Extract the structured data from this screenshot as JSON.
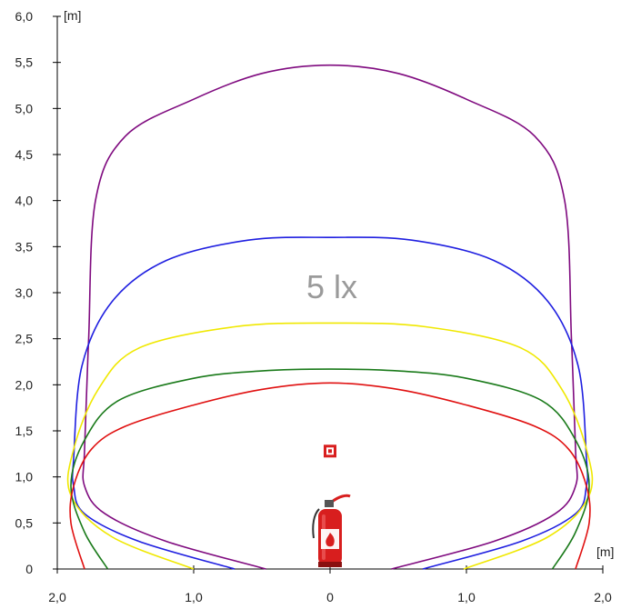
{
  "chart_data": {
    "type": "line",
    "title": "",
    "annotation": "5 lx",
    "x_unit": "[m]",
    "y_unit": "[m]",
    "xlim": [
      -2,
      2
    ],
    "ylim": [
      0,
      6
    ],
    "x_ticks": [
      {
        "value": -2,
        "label": "2,0"
      },
      {
        "value": -1,
        "label": "1,0"
      },
      {
        "value": 0,
        "label": "0"
      },
      {
        "value": 1,
        "label": "1,0"
      },
      {
        "value": 2,
        "label": "2,0"
      }
    ],
    "y_ticks": [
      {
        "value": 0,
        "label": "0"
      },
      {
        "value": 0.5,
        "label": "0,5"
      },
      {
        "value": 1,
        "label": "1,0"
      },
      {
        "value": 1.5,
        "label": "1,5"
      },
      {
        "value": 2,
        "label": "2,0"
      },
      {
        "value": 2.5,
        "label": "2,5"
      },
      {
        "value": 3,
        "label": "3,0"
      },
      {
        "value": 3.5,
        "label": "3,5"
      },
      {
        "value": 4,
        "label": "4,0"
      },
      {
        "value": 4.5,
        "label": "4,5"
      },
      {
        "value": 5,
        "label": "5,0"
      },
      {
        "value": 5.5,
        "label": "5,5"
      },
      {
        "value": 6,
        "label": "6,0"
      }
    ],
    "grid": false,
    "series": [
      {
        "color": "#7f0a7f",
        "points": [
          [
            -0.47,
            0
          ],
          [
            -1.2,
            0.3
          ],
          [
            -1.65,
            0.6
          ],
          [
            -1.8,
            0.9
          ],
          [
            -1.8,
            1.3
          ],
          [
            -1.77,
            2.5
          ],
          [
            -1.72,
            4.0
          ],
          [
            -1.5,
            4.7
          ],
          [
            -1.0,
            5.1
          ],
          [
            -0.5,
            5.38
          ],
          [
            0,
            5.47
          ],
          [
            0.5,
            5.38
          ],
          [
            1.0,
            5.1
          ],
          [
            1.5,
            4.7
          ],
          [
            1.72,
            4.0
          ],
          [
            1.77,
            2.5
          ],
          [
            1.8,
            1.3
          ],
          [
            1.8,
            0.9
          ],
          [
            1.65,
            0.6
          ],
          [
            1.2,
            0.3
          ],
          [
            0.45,
            0
          ]
        ]
      },
      {
        "color": "#1f1fe0",
        "points": [
          [
            -0.7,
            0
          ],
          [
            -1.4,
            0.3
          ],
          [
            -1.8,
            0.6
          ],
          [
            -1.88,
            0.9
          ],
          [
            -1.88,
            1.2
          ],
          [
            -1.82,
            2.2
          ],
          [
            -1.6,
            2.9
          ],
          [
            -1.2,
            3.35
          ],
          [
            -0.6,
            3.57
          ],
          [
            0,
            3.6
          ],
          [
            0.6,
            3.57
          ],
          [
            1.2,
            3.35
          ],
          [
            1.6,
            2.9
          ],
          [
            1.82,
            2.2
          ],
          [
            1.88,
            1.2
          ],
          [
            1.88,
            0.9
          ],
          [
            1.8,
            0.6
          ],
          [
            1.4,
            0.3
          ],
          [
            0.68,
            0
          ]
        ]
      },
      {
        "color": "#f0e800",
        "points": [
          [
            -1.0,
            0
          ],
          [
            -1.6,
            0.35
          ],
          [
            -1.9,
            0.8
          ],
          [
            -1.88,
            1.3
          ],
          [
            -1.7,
            1.95
          ],
          [
            -1.4,
            2.4
          ],
          [
            -0.7,
            2.63
          ],
          [
            0,
            2.67
          ],
          [
            0.7,
            2.63
          ],
          [
            1.4,
            2.4
          ],
          [
            1.7,
            1.95
          ],
          [
            1.88,
            1.3
          ],
          [
            1.9,
            0.8
          ],
          [
            1.6,
            0.35
          ],
          [
            0.98,
            0
          ]
        ]
      },
      {
        "color": "#1a7a1a",
        "points": [
          [
            -1.63,
            0
          ],
          [
            -1.8,
            0.4
          ],
          [
            -1.9,
            0.9
          ],
          [
            -1.8,
            1.4
          ],
          [
            -1.55,
            1.83
          ],
          [
            -1.0,
            2.07
          ],
          [
            -0.5,
            2.15
          ],
          [
            0,
            2.17
          ],
          [
            0.5,
            2.15
          ],
          [
            1.0,
            2.07
          ],
          [
            1.55,
            1.83
          ],
          [
            1.8,
            1.4
          ],
          [
            1.9,
            0.9
          ],
          [
            1.8,
            0.4
          ],
          [
            1.63,
            0
          ]
        ]
      },
      {
        "color": "#e01010",
        "points": [
          [
            -1.8,
            0
          ],
          [
            -1.9,
            0.5
          ],
          [
            -1.88,
            0.9
          ],
          [
            -1.75,
            1.3
          ],
          [
            -1.5,
            1.55
          ],
          [
            -1.0,
            1.78
          ],
          [
            -0.5,
            1.95
          ],
          [
            0,
            2.02
          ],
          [
            0.5,
            1.95
          ],
          [
            1.0,
            1.78
          ],
          [
            1.5,
            1.55
          ],
          [
            1.75,
            1.3
          ],
          [
            1.88,
            0.9
          ],
          [
            1.9,
            0.5
          ],
          [
            1.8,
            0
          ]
        ]
      }
    ],
    "icons": {
      "luminaire": "luminaire-icon",
      "extinguisher": "fire-extinguisher-icon"
    },
    "luminaire_position": [
      0,
      1.28
    ],
    "extinguisher_position": [
      0,
      0
    ]
  }
}
